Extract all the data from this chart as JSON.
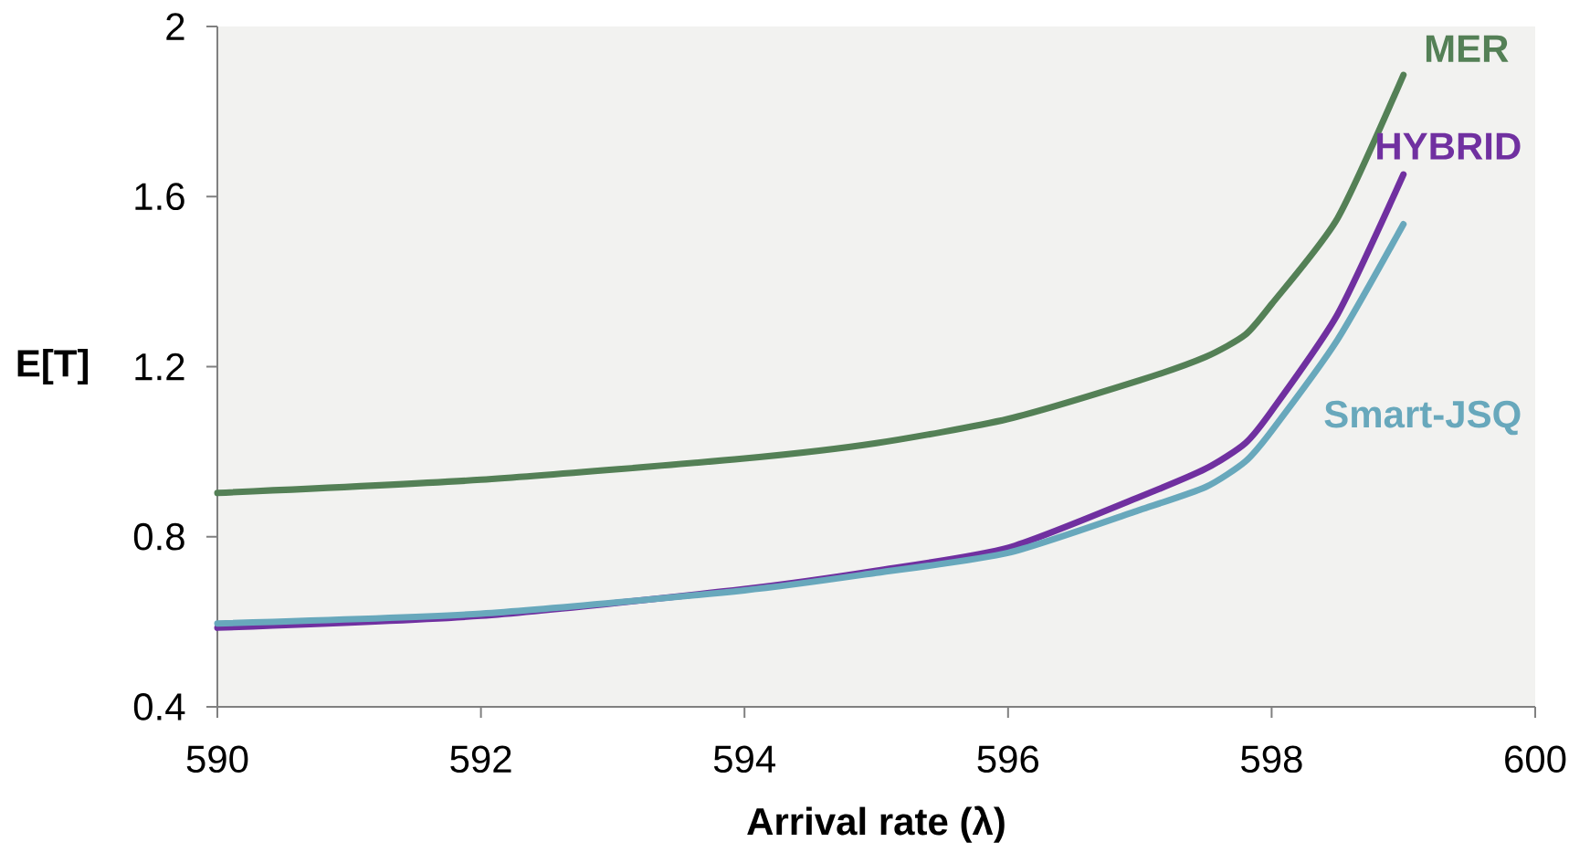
{
  "chart_data": {
    "type": "line",
    "xlabel": "Arrival rate (λ)",
    "ylabel": "E[T]",
    "xlim": [
      590,
      600
    ],
    "xticks": [
      590,
      592,
      594,
      596,
      598,
      600
    ],
    "ylim": [
      0.4,
      2
    ],
    "yticks": [
      0.4,
      0.8,
      1.2,
      1.6,
      2
    ],
    "x": [
      590,
      592,
      594,
      595,
      596,
      597,
      597.5,
      597.8,
      598,
      598.5,
      599
    ],
    "series": [
      {
        "name": "MER",
        "color": "#548056",
        "values": [
          0.903,
          0.934,
          0.984,
          1.02,
          1.077,
          1.168,
          1.223,
          1.275,
          1.347,
          1.549,
          1.886
        ]
      },
      {
        "name": "HYBRID",
        "color": "#7030a0",
        "values": [
          0.586,
          0.614,
          0.677,
          0.72,
          0.774,
          0.894,
          0.96,
          1.02,
          1.096,
          1.323,
          1.652
        ]
      },
      {
        "name": "Smart-JSQ",
        "color": "#68a8bc",
        "values": [
          0.596,
          0.619,
          0.674,
          0.715,
          0.762,
          0.863,
          0.917,
          0.977,
          1.049,
          1.263,
          1.535
        ]
      }
    ]
  }
}
